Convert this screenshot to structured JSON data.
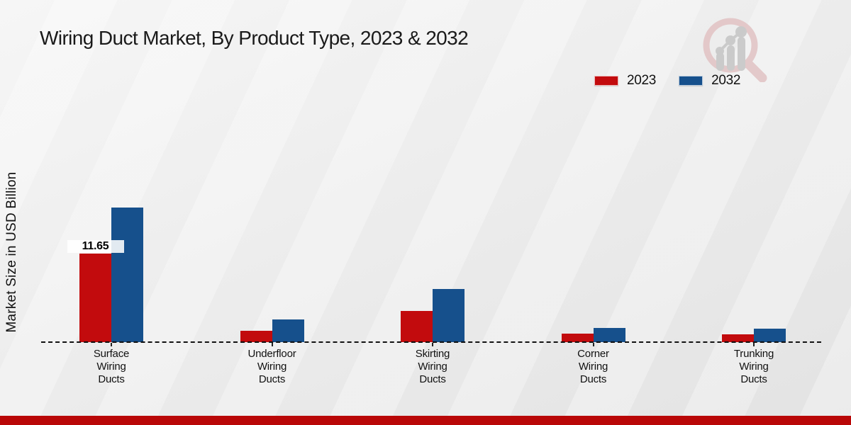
{
  "title": "Wiring Duct Market, By Product Type, 2023 & 2032",
  "y_axis_label": "Market Size in USD Billion",
  "legend": {
    "position": "top-right",
    "items": [
      {
        "label": "2023",
        "color": "#c20b0d"
      },
      {
        "label": "2032",
        "color": "#16508c"
      }
    ]
  },
  "colors": {
    "series_2023": "#c20b0d",
    "series_2032": "#16508c",
    "bottom_band": "#b90707",
    "text": "#1a1a1a",
    "background_light": "#f6f6f6",
    "background_dark": "#e3e3e3"
  },
  "chart_data": {
    "type": "bar",
    "categories": [
      "Surface Wiring Ducts",
      "Underfloor Wiring Ducts",
      "Skirting Wiring Ducts",
      "Corner Wiring Ducts",
      "Trunking Wiring Ducts"
    ],
    "series": [
      {
        "name": "2023",
        "color": "#c20b0d",
        "values": [
          11.65,
          1.5,
          4.1,
          1.1,
          1.05
        ]
      },
      {
        "name": "2032",
        "color": "#16508c",
        "values": [
          17.7,
          3.0,
          7.0,
          1.9,
          1.75
        ]
      }
    ],
    "ylabel": "Market Size in USD Billion",
    "ylim": [
      0,
      19
    ],
    "grid": false,
    "baseline_style": "dashed",
    "legend_position": "top-right",
    "data_labels": [
      {
        "series_index": 0,
        "category_index": 0,
        "text": "11.65"
      }
    ]
  },
  "logo": {
    "name": "market-research-magnifier-logo"
  }
}
